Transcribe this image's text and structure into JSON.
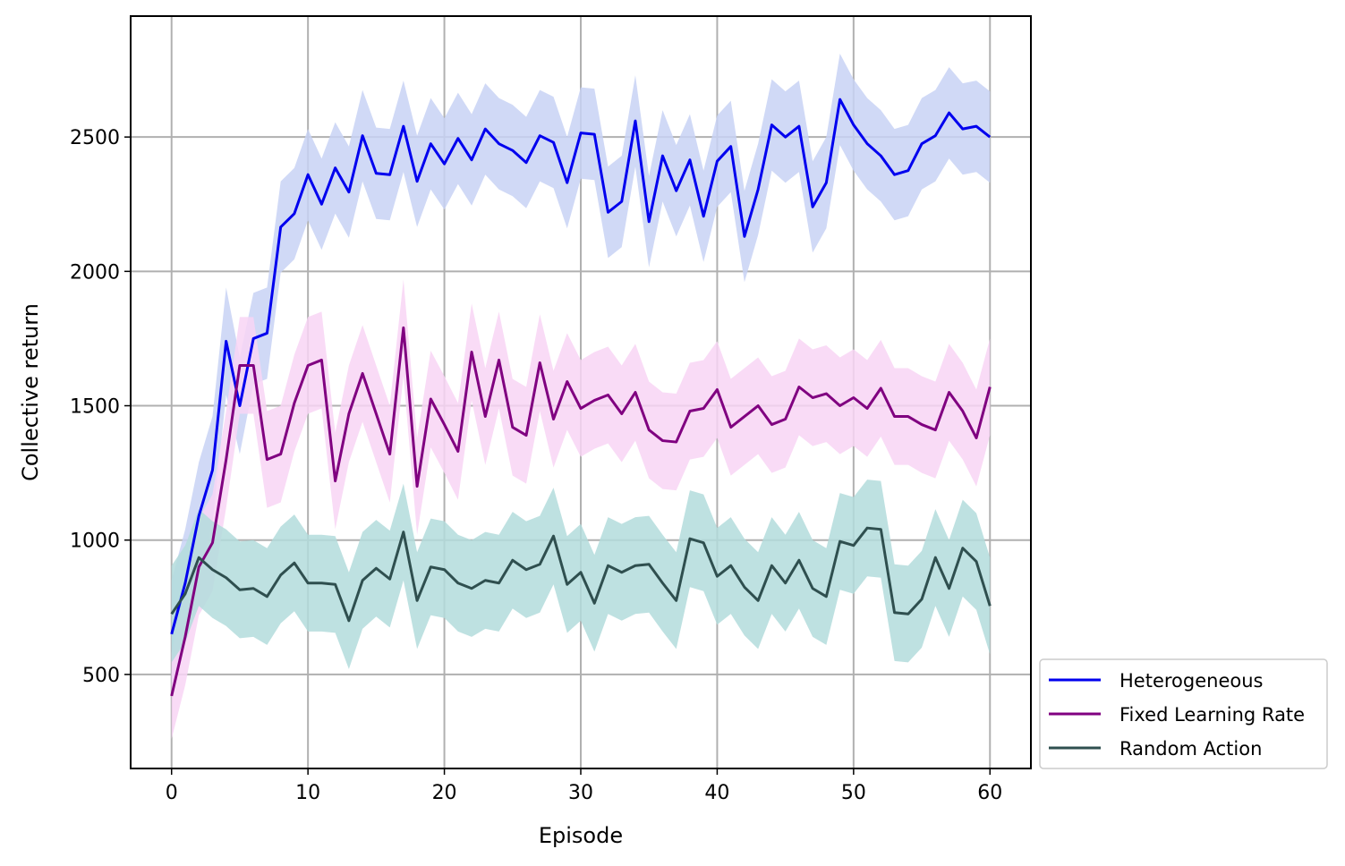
{
  "chart_data": {
    "type": "line",
    "title": "",
    "xlabel": "Episode",
    "ylabel": "Collective return",
    "xlim": [
      -3,
      63
    ],
    "ylim": [
      150,
      2950
    ],
    "xticks": [
      0,
      10,
      20,
      30,
      40,
      50,
      60
    ],
    "yticks": [
      500,
      1000,
      1500,
      2000,
      2500
    ],
    "xtick_labels": [
      "0",
      "10",
      "20",
      "30",
      "40",
      "50",
      "60"
    ],
    "ytick_labels": [
      "500",
      "1000",
      "1500",
      "2000",
      "2500"
    ],
    "grid": true,
    "legend_position": "lower-right outside",
    "x": [
      0,
      1,
      2,
      3,
      4,
      5,
      6,
      7,
      8,
      9,
      10,
      11,
      12,
      13,
      14,
      15,
      16,
      17,
      18,
      19,
      20,
      21,
      22,
      23,
      24,
      25,
      26,
      27,
      28,
      29,
      30,
      31,
      32,
      33,
      34,
      35,
      36,
      37,
      38,
      39,
      40,
      41,
      42,
      43,
      44,
      45,
      46,
      47,
      48,
      49,
      50,
      51,
      52,
      53,
      54,
      55,
      56,
      57,
      58,
      59,
      60
    ],
    "series": [
      {
        "name": "Heterogeneous",
        "color": "#0000ee",
        "band_color": "#c8d2f5",
        "values": [
          650,
          840,
          1090,
          1260,
          1740,
          1500,
          1750,
          1770,
          2165,
          2215,
          2360,
          2250,
          2385,
          2295,
          2505,
          2365,
          2360,
          2540,
          2335,
          2475,
          2400,
          2495,
          2415,
          2530,
          2475,
          2450,
          2405,
          2505,
          2480,
          2330,
          2515,
          2510,
          2220,
          2260,
          2560,
          2185,
          2430,
          2300,
          2415,
          2205,
          2410,
          2465,
          2130,
          2305,
          2545,
          2500,
          2540,
          2240,
          2330,
          2640,
          2545,
          2475,
          2430,
          2360,
          2375,
          2475,
          2505,
          2590,
          2530,
          2540,
          2500
        ],
        "band": [
          200,
          200,
          200,
          200,
          200,
          180,
          170,
          170,
          170,
          170,
          170,
          170,
          170,
          170,
          170,
          170,
          170,
          170,
          170,
          170,
          170,
          170,
          170,
          170,
          170,
          170,
          170,
          170,
          170,
          170,
          170,
          170,
          170,
          170,
          170,
          170,
          170,
          170,
          170,
          170,
          170,
          170,
          170,
          170,
          170,
          170,
          170,
          170,
          170,
          170,
          170,
          170,
          170,
          170,
          170,
          170,
          170,
          170,
          170,
          170,
          170
        ]
      },
      {
        "name": "Fixed Learning Rate",
        "color": "#800080",
        "band_color": "#f8d5f5",
        "values": [
          420,
          640,
          900,
          990,
          1300,
          1650,
          1650,
          1300,
          1320,
          1510,
          1650,
          1670,
          1220,
          1470,
          1620,
          1470,
          1320,
          1790,
          1200,
          1525,
          1430,
          1330,
          1700,
          1460,
          1670,
          1420,
          1390,
          1660,
          1450,
          1590,
          1490,
          1520,
          1540,
          1470,
          1550,
          1410,
          1370,
          1365,
          1480,
          1490,
          1560,
          1420,
          1460,
          1500,
          1430,
          1450,
          1570,
          1530,
          1545,
          1500,
          1530,
          1490,
          1565,
          1460,
          1460,
          1430,
          1410,
          1550,
          1480,
          1380,
          1570
        ],
        "band": [
          160,
          180,
          180,
          180,
          180,
          180,
          180,
          180,
          180,
          180,
          180,
          180,
          180,
          180,
          180,
          180,
          180,
          180,
          180,
          180,
          180,
          180,
          180,
          180,
          180,
          180,
          180,
          180,
          180,
          180,
          180,
          180,
          180,
          180,
          180,
          180,
          180,
          180,
          180,
          180,
          180,
          180,
          180,
          180,
          180,
          180,
          180,
          180,
          180,
          180,
          180,
          180,
          180,
          180,
          180,
          180,
          180,
          180,
          180,
          180,
          180
        ]
      },
      {
        "name": "Random Action",
        "color": "#2f4f4f",
        "band_color": "#b3dcdc",
        "values": [
          725,
          800,
          935,
          890,
          860,
          815,
          820,
          790,
          870,
          915,
          840,
          840,
          835,
          700,
          850,
          895,
          855,
          1030,
          775,
          900,
          890,
          840,
          820,
          850,
          840,
          925,
          890,
          910,
          1015,
          835,
          880,
          765,
          905,
          880,
          905,
          910,
          840,
          775,
          1005,
          990,
          865,
          905,
          825,
          775,
          905,
          840,
          925,
          820,
          790,
          995,
          980,
          1045,
          1040,
          730,
          725,
          780,
          935,
          820,
          970,
          920,
          755
        ],
        "band": [
          180,
          180,
          180,
          180,
          180,
          180,
          180,
          180,
          180,
          180,
          180,
          180,
          180,
          180,
          180,
          180,
          180,
          180,
          180,
          180,
          180,
          180,
          180,
          180,
          180,
          180,
          180,
          180,
          180,
          180,
          180,
          180,
          180,
          180,
          180,
          180,
          180,
          180,
          180,
          180,
          180,
          180,
          180,
          180,
          180,
          180,
          180,
          180,
          180,
          180,
          180,
          180,
          180,
          180,
          180,
          180,
          180,
          180,
          180,
          180,
          180
        ]
      }
    ]
  }
}
